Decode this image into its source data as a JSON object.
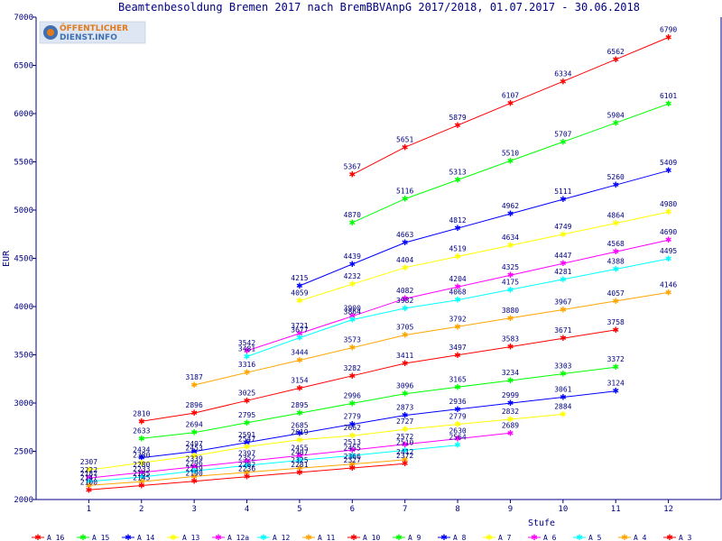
{
  "chart_data": {
    "type": "line",
    "title": "Beamtenbesoldung Bremen 2017 nach BremBBVAnpG 2017/2018, 01.07.2017 - 30.06.2018",
    "xlabel": "Stufe",
    "ylabel": "EUR",
    "xlim": [
      0,
      13
    ],
    "ylim": [
      2000,
      7000
    ],
    "x_ticks": [
      1,
      2,
      3,
      4,
      5,
      6,
      7,
      8,
      9,
      10,
      11,
      12
    ],
    "y_ticks": [
      2000,
      2500,
      3000,
      3500,
      4000,
      4500,
      5000,
      5500,
      6000,
      6500,
      7000
    ],
    "grid": false,
    "legend_position": "bottom",
    "series": [
      {
        "name": "A_16",
        "color": "#ff0000",
        "x": [
          6,
          7,
          8,
          9,
          10,
          11,
          12
        ],
        "values": [
          5367,
          5651,
          5879,
          6107,
          6334,
          6562,
          6790
        ]
      },
      {
        "name": "A_15",
        "color": "#00ff00",
        "x": [
          6,
          7,
          8,
          9,
          10,
          11,
          12
        ],
        "values": [
          4870,
          5116,
          5313,
          5510,
          5707,
          5904,
          6101
        ]
      },
      {
        "name": "A_14",
        "color": "#0000ff",
        "x": [
          5,
          6,
          7,
          8,
          9,
          10,
          11,
          12
        ],
        "values": [
          4215,
          4439,
          4663,
          4812,
          4962,
          5111,
          5260,
          5409
        ]
      },
      {
        "name": "A_13",
        "color": "#ffff00",
        "x": [
          5,
          6,
          7,
          8,
          9,
          10,
          11,
          12
        ],
        "values": [
          4059,
          4232,
          4404,
          4519,
          4634,
          4749,
          4864,
          4980
        ]
      },
      {
        "name": "A_12a",
        "color": "#ff00ff",
        "x": [
          4,
          5,
          6,
          7,
          8,
          9,
          10,
          11,
          12
        ],
        "values": [
          3542,
          3721,
          3900,
          4082,
          4204,
          4325,
          4447,
          4568,
          4690
        ]
      },
      {
        "name": "A_12",
        "color": "#00ffff",
        "x": [
          4,
          5,
          6,
          7,
          8,
          9,
          10,
          11,
          12
        ],
        "values": [
          3481,
          3677,
          3864,
          3982,
          4068,
          4175,
          4281,
          4388,
          4495
        ]
      },
      {
        "name": "A_11",
        "color": "#ffa500",
        "x": [
          3,
          4,
          5,
          6,
          7,
          8,
          9,
          10,
          11,
          12
        ],
        "values": [
          3187,
          3316,
          3444,
          3573,
          3705,
          3792,
          3880,
          3967,
          4057,
          4146
        ]
      },
      {
        "name": "A_10",
        "color": "#ff0000",
        "x": [
          2,
          3,
          4,
          5,
          6,
          7,
          8,
          9,
          10,
          11
        ],
        "values": [
          2810,
          2896,
          3025,
          3154,
          3282,
          3411,
          3497,
          3583,
          3671,
          3758
        ]
      },
      {
        "name": "A_9",
        "color": "#00ff00",
        "x": [
          2,
          3,
          4,
          5,
          6,
          7,
          8,
          9,
          10,
          11
        ],
        "values": [
          2633,
          2694,
          2795,
          2895,
          2996,
          3096,
          3165,
          3234,
          3303,
          3372
        ]
      },
      {
        "name": "A_8",
        "color": "#0000ff",
        "x": [
          2,
          3,
          4,
          5,
          6,
          7,
          8,
          9,
          10,
          11
        ],
        "values": [
          2434,
          2497,
          2591,
          2685,
          2779,
          2873,
          2936,
          2999,
          3061,
          3124
        ]
      },
      {
        "name": "A_7",
        "color": "#ffff00",
        "x": [
          1,
          2,
          3,
          4,
          5,
          6,
          7,
          8,
          9,
          10
        ],
        "values": [
          2307,
          2380,
          2453,
          2547,
          2619,
          2662,
          2727,
          2779,
          2832,
          2884
        ]
      },
      {
        "name": "A_6",
        "color": "#ff00ff",
        "x": [
          1,
          2,
          3,
          4,
          5,
          6,
          7,
          8,
          9
        ],
        "values": [
          2222,
          2280,
          2339,
          2397,
          2455,
          2513,
          2572,
          2630,
          2689
        ]
      },
      {
        "name": "A_5",
        "color": "#00ffff",
        "x": [
          1,
          2,
          3,
          4,
          5,
          6,
          7,
          8
        ],
        "values": [
          2187,
          2233,
          2296,
          2352,
          2407,
          2455,
          2510,
          2564
        ]
      },
      {
        "name": "A_4",
        "color": "#ffa500",
        "x": [
          1,
          2,
          3,
          4,
          5,
          6,
          7
        ],
        "values": [
          2147,
          2185,
          2239,
          2282,
          2325,
          2366,
          2412
        ]
      },
      {
        "name": "A_3",
        "color": "#ff0000",
        "x": [
          1,
          2,
          3,
          4,
          5,
          6,
          7
        ],
        "values": [
          2100,
          2145,
          2190,
          2236,
          2281,
          2327,
          2372
        ]
      }
    ]
  },
  "logo": {
    "line1": "ÖFFENTLICHER",
    "line2": "DIENST.INFO"
  },
  "colors": {
    "axis": "#000080",
    "text": "#000080",
    "background": "#ffffff"
  }
}
